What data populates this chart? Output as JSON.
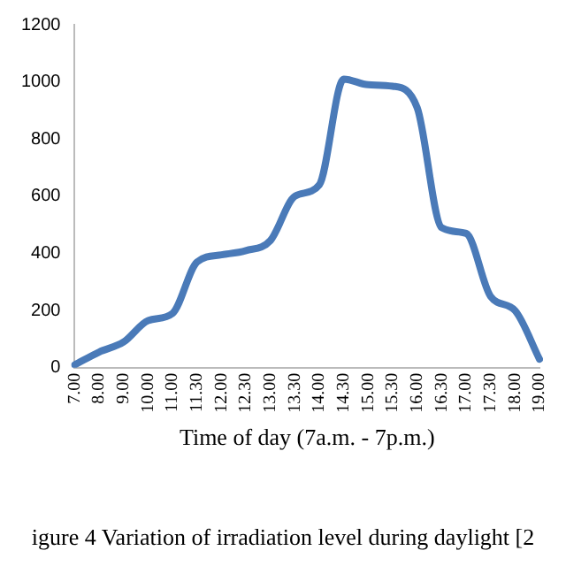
{
  "chart_data": {
    "type": "line",
    "xlabel": "Time of day (7a.m. - 7p.m.)",
    "categories": [
      "7.00",
      "8.00",
      "9.00",
      "10.00",
      "11.00",
      "11.30",
      "12.00",
      "12.30",
      "13.00",
      "13.30",
      "14.00",
      "14.30",
      "15.00",
      "15.30",
      "16.00",
      "16.30",
      "17.00",
      "17.30",
      "18.00",
      "19.00"
    ],
    "series": [
      {
        "color": "#4a7ab8",
        "values": [
          10,
          55,
          90,
          165,
          190,
          370,
          395,
          410,
          445,
          600,
          640,
          1010,
          990,
          985,
          910,
          490,
          470,
          250,
          200,
          30
        ]
      }
    ],
    "ylim": [
      0,
      1200
    ],
    "yticks": [
      0,
      200,
      400,
      600,
      800,
      1000,
      1200
    ],
    "grid": false,
    "legend": false,
    "marker": "none",
    "line_style": "solid",
    "annotations": [
      "igure 4  Variation of irradiation level during daylight [2"
    ]
  }
}
